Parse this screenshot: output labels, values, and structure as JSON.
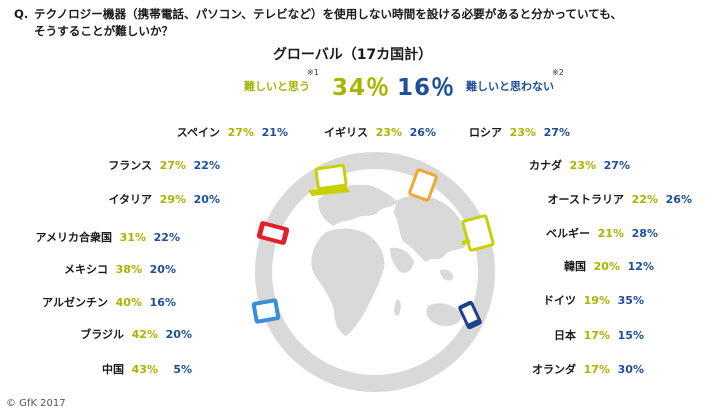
{
  "question": {
    "prefix": "Q.",
    "line1": "テクノロジー機器（携帯電話、パソコン、テレビなど）を使用しない時間を設ける必要があると分かっていても、",
    "line2": "そうすることが難しいか？"
  },
  "global": {
    "title": "グローバル（17カ国計）",
    "hard_label": "難しいと思う",
    "hard_note": "※1",
    "hard_value": "34％",
    "easy_value": "16％",
    "easy_label": "難しいと思わない",
    "easy_note": "※2"
  },
  "copyright": "© GfK 2017",
  "colors": {
    "hard": "#a8b400",
    "not_hard": "#1f4e9b",
    "globe": "#d9d9d9"
  },
  "chart_data": {
    "type": "table",
    "title": "グローバル（17カ国計）",
    "columns": [
      "難しいと思う",
      "難しいと思わない"
    ],
    "rows": [
      {
        "country": "スペイン",
        "hard": "27%",
        "not_hard": "21%"
      },
      {
        "country": "イギリス",
        "hard": "23%",
        "not_hard": "26%"
      },
      {
        "country": "ロシア",
        "hard": "23%",
        "not_hard": "27%"
      },
      {
        "country": "フランス",
        "hard": "27%",
        "not_hard": "22%"
      },
      {
        "country": "カナダ",
        "hard": "23%",
        "not_hard": "27%"
      },
      {
        "country": "イタリア",
        "hard": "29%",
        "not_hard": "20%"
      },
      {
        "country": "オーストラリア",
        "hard": "22%",
        "not_hard": "26%"
      },
      {
        "country": "アメリカ合衆国",
        "hard": "31%",
        "not_hard": "22%"
      },
      {
        "country": "ベルギー",
        "hard": "21%",
        "not_hard": "28%"
      },
      {
        "country": "メキシコ",
        "hard": "38%",
        "not_hard": "20%"
      },
      {
        "country": "韓国",
        "hard": "20%",
        "not_hard": "12%"
      },
      {
        "country": "アルゼンチン",
        "hard": "40%",
        "not_hard": "16%"
      },
      {
        "country": "ドイツ",
        "hard": "19%",
        "not_hard": "35%"
      },
      {
        "country": "ブラジル",
        "hard": "42%",
        "not_hard": "20%"
      },
      {
        "country": "日本",
        "hard": "17%",
        "not_hard": "15%"
      },
      {
        "country": "中国",
        "hard": "43%",
        "not_hard": "5%"
      },
      {
        "country": "オランダ",
        "hard": "17%",
        "not_hard": "30%"
      }
    ]
  }
}
